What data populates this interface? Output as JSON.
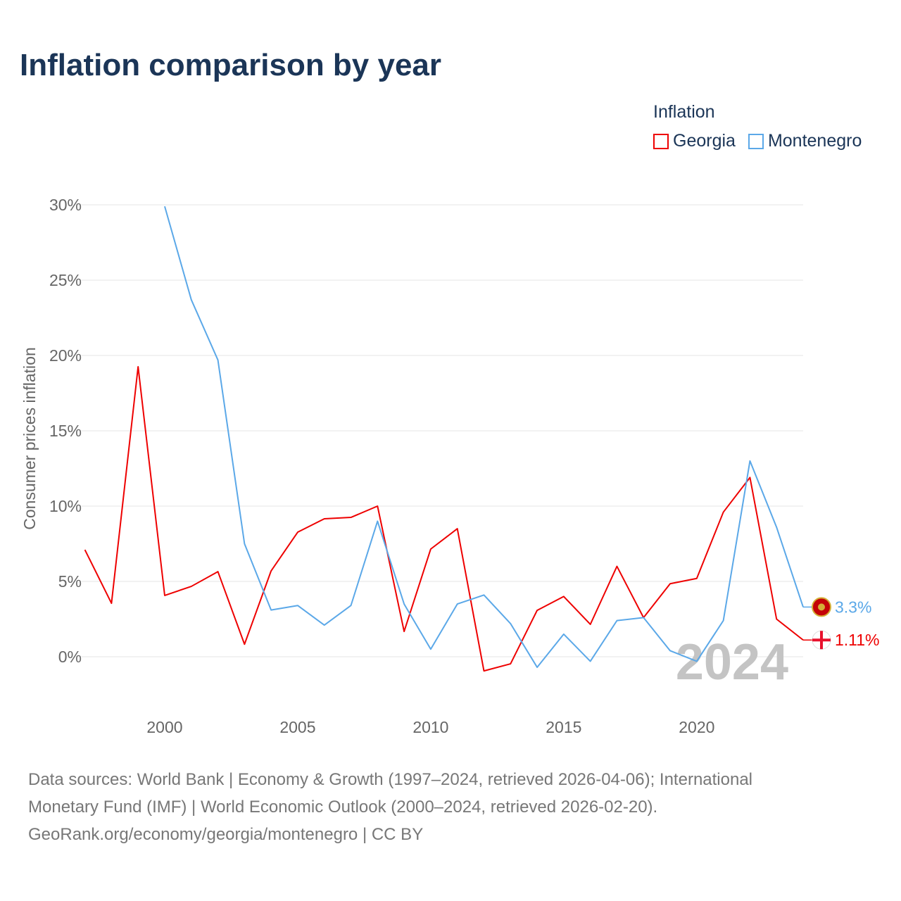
{
  "title": "Inflation comparison by year",
  "legend": {
    "title": "Inflation",
    "items": [
      {
        "label": "Georgia",
        "color": "#ee0000"
      },
      {
        "label": "Montenegro",
        "color": "#5ba8e8"
      }
    ]
  },
  "chart_data": {
    "type": "line",
    "title": "Inflation comparison by year",
    "ylabel": "Consumer prices inflation",
    "xlabel": "",
    "xlim": [
      1997,
      2024
    ],
    "ylim": [
      -3,
      30
    ],
    "yticks": [
      0,
      5,
      10,
      15,
      20,
      25,
      30
    ],
    "ytick_labels": [
      "0%",
      "5%",
      "10%",
      "15%",
      "20%",
      "25%",
      "30%"
    ],
    "xticks": [
      2000,
      2005,
      2010,
      2015,
      2020
    ],
    "xtick_labels": [
      "2000",
      "2005",
      "2010",
      "2015",
      "2020"
    ],
    "grid": true,
    "year_watermark": "2024",
    "series": [
      {
        "name": "Georgia",
        "color": "#ee0000",
        "end_label": "1.11%",
        "x": [
          1997,
          1998,
          1999,
          2000,
          2001,
          2002,
          2003,
          2004,
          2005,
          2006,
          2007,
          2008,
          2009,
          2010,
          2011,
          2012,
          2013,
          2014,
          2015,
          2016,
          2017,
          2018,
          2019,
          2020,
          2021,
          2022,
          2023,
          2024
        ],
        "values": [
          7.1,
          3.55,
          19.25,
          4.07,
          4.67,
          5.65,
          0.83,
          5.7,
          8.27,
          9.16,
          9.25,
          10.0,
          1.68,
          7.15,
          8.5,
          -0.94,
          -0.47,
          3.08,
          4.0,
          2.15,
          6.0,
          2.6,
          4.85,
          5.2,
          9.6,
          11.9,
          2.5,
          1.11
        ]
      },
      {
        "name": "Montenegro",
        "color": "#5ba8e8",
        "end_label": "3.3%",
        "x": [
          2000,
          2001,
          2002,
          2003,
          2004,
          2005,
          2006,
          2007,
          2008,
          2009,
          2010,
          2011,
          2012,
          2013,
          2014,
          2015,
          2016,
          2017,
          2018,
          2019,
          2020,
          2021,
          2022,
          2023,
          2024
        ],
        "values": [
          29.9,
          23.7,
          19.7,
          7.5,
          3.1,
          3.4,
          2.1,
          3.4,
          9.0,
          3.5,
          0.5,
          3.5,
          4.1,
          2.2,
          -0.7,
          1.5,
          -0.3,
          2.4,
          2.6,
          0.4,
          -0.3,
          2.4,
          13.0,
          8.6,
          3.3
        ]
      }
    ]
  },
  "footer": {
    "line1": "Data sources: World Bank | Economy & Growth (1997–2024, retrieved 2026-04-06); International",
    "line2": "Monetary Fund (IMF) | World Economic Outlook (2000–2024, retrieved 2026-02-20).",
    "line3": "GeoRank.org/economy/georgia/montenegro | CC BY"
  }
}
